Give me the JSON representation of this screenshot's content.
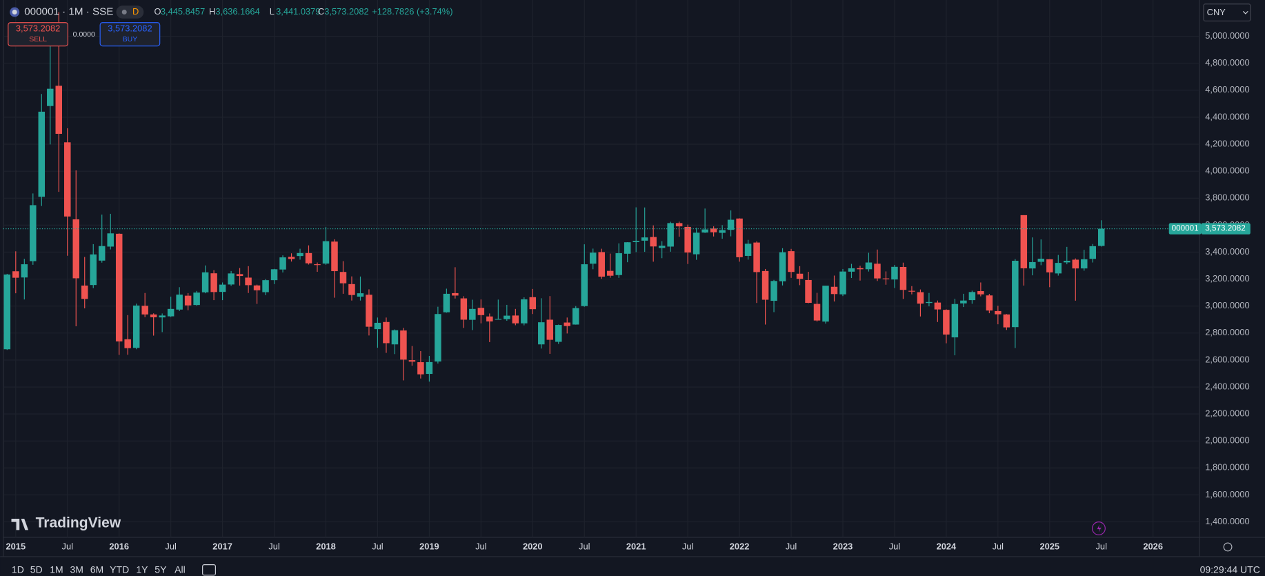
{
  "chart_data": {
    "type": "candlestick",
    "x": [
      "2014-12",
      "2015-01",
      "2015-02",
      "2015-03",
      "2015-04",
      "2015-05",
      "2015-06",
      "2015-07",
      "2015-08",
      "2015-09",
      "2015-10",
      "2015-11",
      "2015-12",
      "2016-01",
      "2016-02",
      "2016-03",
      "2016-04",
      "2016-05",
      "2016-06",
      "2016-07",
      "2016-08",
      "2016-09",
      "2016-10",
      "2016-11",
      "2016-12",
      "2017-01",
      "2017-02",
      "2017-03",
      "2017-04",
      "2017-05",
      "2017-06",
      "2017-07",
      "2017-08",
      "2017-09",
      "2017-10",
      "2017-11",
      "2017-12",
      "2018-01",
      "2018-02",
      "2018-03",
      "2018-04",
      "2018-05",
      "2018-06",
      "2018-07",
      "2018-08",
      "2018-09",
      "2018-10",
      "2018-11",
      "2018-12",
      "2019-01",
      "2019-02",
      "2019-03",
      "2019-04",
      "2019-05",
      "2019-06",
      "2019-07",
      "2019-08",
      "2019-09",
      "2019-10",
      "2019-11",
      "2019-12",
      "2020-01",
      "2020-02",
      "2020-03",
      "2020-04",
      "2020-05",
      "2020-06",
      "2020-07",
      "2020-08",
      "2020-09",
      "2020-10",
      "2020-11",
      "2020-12",
      "2021-01",
      "2021-02",
      "2021-03",
      "2021-04",
      "2021-05",
      "2021-06",
      "2021-07",
      "2021-08",
      "2021-09",
      "2021-10",
      "2021-11",
      "2021-12",
      "2022-01",
      "2022-02",
      "2022-03",
      "2022-04",
      "2022-05",
      "2022-06",
      "2022-07",
      "2022-08",
      "2022-09",
      "2022-10",
      "2022-11",
      "2022-12",
      "2023-01",
      "2023-02",
      "2023-03",
      "2023-04",
      "2023-05",
      "2023-06",
      "2023-07",
      "2023-08",
      "2023-09",
      "2023-10",
      "2023-11",
      "2023-12",
      "2024-01",
      "2024-02",
      "2024-03",
      "2024-04",
      "2024-05",
      "2024-06",
      "2024-07",
      "2024-08",
      "2024-09",
      "2024-10",
      "2024-11",
      "2024-12",
      "2025-01",
      "2025-02",
      "2025-03",
      "2025-04",
      "2025-05",
      "2025-06",
      "2025-07"
    ],
    "open": [
      2680,
      3258,
      3212,
      3333,
      3810,
      4483,
      4633,
      4214,
      3643,
      3152,
      3156,
      3337,
      3441,
      3536,
      2754,
      2690,
      3002,
      2938,
      2916,
      2924,
      2974,
      3077,
      3008,
      3102,
      3243,
      3105,
      3160,
      3237,
      3211,
      3153,
      3103,
      3192,
      3271,
      3365,
      3371,
      3393,
      3310,
      3315,
      3478,
      3253,
      3163,
      3070,
      3084,
      2829,
      2882,
      2716,
      2819,
      2599,
      2584,
      2497,
      2589,
      2954,
      3096,
      3057,
      2898,
      2987,
      2923,
      2903,
      2903,
      2930,
      2872,
      3066,
      2716,
      2899,
      2735,
      2878,
      2863,
      3000,
      3314,
      3400,
      3261,
      3230,
      3388,
      3474,
      3485,
      3512,
      3431,
      3441,
      3615,
      3587,
      3384,
      3545,
      3575,
      3543,
      3565,
      3649,
      3372,
      3471,
      3260,
      3039,
      3184,
      3407,
      3240,
      3193,
      3016,
      2885,
      3143,
      3087,
      3255,
      3281,
      3273,
      3314,
      3205,
      3197,
      3290,
      3113,
      3103,
      3023,
      3026,
      2972,
      2768,
      3020,
      3044,
      3111,
      3079,
      2963,
      2938,
      2844,
      3674,
      3279,
      3328,
      3347,
      3242,
      3324,
      3344,
      3279,
      3350,
      3445.8457
    ],
    "high": [
      3239,
      3406,
      3350,
      3835,
      4572,
      4986,
      5178,
      4318,
      4006,
      3364,
      3459,
      3678,
      3684,
      3539,
      2933,
      3018,
      3097,
      2946,
      2945,
      3070,
      3140,
      3096,
      3112,
      3301,
      3266,
      3175,
      3260,
      3282,
      3296,
      3159,
      3200,
      3276,
      3376,
      3391,
      3425,
      3450,
      3323,
      3587,
      3495,
      3333,
      3220,
      3219,
      3124,
      2915,
      2915,
      2827,
      2838,
      2704,
      2666,
      2630,
      2995,
      3129,
      3288,
      3073,
      3047,
      3049,
      2945,
      3048,
      3009,
      2979,
      3065,
      3127,
      3058,
      3074,
      2863,
      2915,
      3000,
      3458,
      3426,
      3425,
      3389,
      3465,
      3474,
      3732,
      3731,
      3598,
      3481,
      3625,
      3626,
      3604,
      3581,
      3723,
      3591,
      3600,
      3709,
      3651,
      3491,
      3480,
      3275,
      3194,
      3429,
      3424,
      3296,
      3254,
      3098,
      3150,
      3226,
      3275,
      3313,
      3299,
      3395,
      3419,
      3257,
      3305,
      3322,
      3148,
      3123,
      3097,
      3041,
      2976,
      3054,
      3091,
      3114,
      3175,
      3090,
      3002,
      2941,
      3348,
      3674,
      3509,
      3494,
      3347,
      3379,
      3439,
      3353,
      3417,
      3460,
      3636.1664
    ],
    "low": [
      2675,
      3095,
      3049,
      3306,
      3742,
      4198,
      3847,
      3373,
      2850,
      2983,
      3133,
      3322,
      3420,
      2638,
      2639,
      2680,
      2918,
      2781,
      2807,
      2919,
      2963,
      2969,
      3003,
      3095,
      3044,
      3044,
      3150,
      3152,
      3097,
      3016,
      3081,
      3163,
      3249,
      3330,
      3344,
      3308,
      3254,
      3306,
      3062,
      3091,
      3041,
      3041,
      2782,
      2691,
      2653,
      2644,
      2449,
      2558,
      2463,
      2440,
      2574,
      2951,
      3056,
      2838,
      2822,
      2872,
      2733,
      2901,
      2891,
      2858,
      2857,
      2941,
      2685,
      2646,
      2719,
      2797,
      2862,
      2995,
      3273,
      3202,
      3210,
      3209,
      3325,
      3400,
      3402,
      3329,
      3355,
      3403,
      3514,
      3312,
      3343,
      3542,
      3516,
      3499,
      3517,
      3329,
      3344,
      3023,
      2863,
      2955,
      3153,
      3209,
      3155,
      3021,
      2885,
      2870,
      3034,
      3074,
      3208,
      3189,
      3256,
      3186,
      3158,
      3134,
      3053,
      3087,
      2923,
      2998,
      2882,
      2724,
      2635,
      2993,
      3017,
      3072,
      2947,
      2865,
      2823,
      2689,
      3152,
      3228,
      3303,
      3140,
      3226,
      3310,
      3040,
      3262,
      3323,
      3441.0379
    ],
    "close": [
      3234,
      3210,
      3310,
      3748,
      4441,
      4611,
      4277,
      3664,
      3206,
      3053,
      3383,
      3445,
      3539,
      2738,
      2688,
      3004,
      2938,
      2917,
      2930,
      2979,
      3085,
      3005,
      3100,
      3250,
      3104,
      3159,
      3242,
      3223,
      3155,
      3117,
      3192,
      3273,
      3361,
      3349,
      3393,
      3317,
      3307,
      3481,
      3259,
      3169,
      3082,
      3095,
      2847,
      2876,
      2725,
      2821,
      2603,
      2588,
      2494,
      2585,
      2941,
      3091,
      3078,
      2899,
      2979,
      2933,
      2886,
      2905,
      2929,
      2872,
      3050,
      2977,
      2880,
      2750,
      2860,
      2852,
      2985,
      3310,
      3396,
      3218,
      3225,
      3392,
      3473,
      3483,
      3509,
      3442,
      3447,
      3615,
      3591,
      3397,
      3544,
      3568,
      3547,
      3563,
      3640,
      3362,
      3462,
      3252,
      3047,
      3186,
      3399,
      3253,
      3202,
      3024,
      2893,
      3151,
      3089,
      3256,
      3280,
      3273,
      3323,
      3205,
      3202,
      3291,
      3120,
      3110,
      3018,
      3030,
      2975,
      2789,
      3015,
      3041,
      3104,
      3087,
      2967,
      2939,
      2842,
      3336,
      3280,
      3326,
      3351,
      3250,
      3320,
      3336,
      3279,
      3347,
      3444,
      3573.2082
    ],
    "up_color": "#26a69a",
    "down_color": "#ef5350",
    "xlim": [
      2014.88,
      2026.45
    ],
    "xticks": [
      2015,
      {
        "value": 2015.5,
        "label": "Jul"
      },
      2016,
      {
        "value": 2016.5,
        "label": "Jul"
      },
      2017,
      {
        "value": 2017.5,
        "label": "Jul"
      },
      2018,
      {
        "value": 2018.5,
        "label": "Jul"
      },
      2019,
      {
        "value": 2019.5,
        "label": "Jul"
      },
      2020,
      {
        "value": 2020.5,
        "label": "Jul"
      },
      2021,
      {
        "value": 2021.5,
        "label": "Jul"
      },
      2022,
      {
        "value": 2022.5,
        "label": "Jul"
      },
      2023,
      {
        "value": 2023.5,
        "label": "Jul"
      },
      2024,
      {
        "value": 2024.5,
        "label": "Jul"
      },
      2025,
      {
        "value": 2025.5,
        "label": "Jul"
      },
      2026
    ],
    "ylim": [
      1286,
      5269
    ],
    "yticks": [
      {
        "value": 1400,
        "label": "1,400.0000"
      },
      {
        "value": 1600,
        "label": "1,600.0000"
      },
      {
        "value": 1800,
        "label": "1,800.0000"
      },
      {
        "value": 2000,
        "label": "2,000.0000"
      },
      {
        "value": 2200,
        "label": "2,200.0000"
      },
      {
        "value": 2400,
        "label": "2,400.0000"
      },
      {
        "value": 2600,
        "label": "2,600.0000"
      },
      {
        "value": 2800,
        "label": "2,800.0000"
      },
      {
        "value": 3000,
        "label": "3,000.0000"
      },
      {
        "value": 3200,
        "label": "3,200.0000"
      },
      {
        "value": 3400,
        "label": "3,400.0000"
      },
      {
        "value": 3600,
        "label": "3,600.0000"
      },
      {
        "value": 3800,
        "label": "3,800.0000"
      },
      {
        "value": 4000,
        "label": "4,000.0000"
      },
      {
        "value": 4200,
        "label": "4,200.0000"
      },
      {
        "value": 4400,
        "label": "4,400.0000"
      },
      {
        "value": 4600,
        "label": "4,600.0000"
      },
      {
        "value": 4800,
        "label": "4,800.0000"
      },
      {
        "value": 5000,
        "label": "5,000.0000"
      }
    ],
    "grid": true
  },
  "ui": {
    "symbol": "000001 · 1M · SSE",
    "badge": "D",
    "ohlc": [
      {
        "key": "O",
        "value": "3,445.8457"
      },
      {
        "key": "H",
        "value": "3,636.1664"
      },
      {
        "key": "L",
        "value": "3,441.0379"
      },
      {
        "key": "C",
        "value": "3,573.2082"
      }
    ],
    "change": "+128.7826 (+3.74%)",
    "sell_price": "3,573.2082",
    "sell": "SELL",
    "spread": "0.0000",
    "buy_price": "3,573.2082",
    "buy": "BUY",
    "currency": "CNY",
    "tag_symbol": "000001",
    "tag_price": "3,573.2082",
    "logo": "TradingView",
    "ranges": [
      "1D",
      "5D",
      "1M",
      "3M",
      "6M",
      "YTD",
      "1Y",
      "5Y",
      "All"
    ],
    "clock": "09:29:44 UTC"
  }
}
